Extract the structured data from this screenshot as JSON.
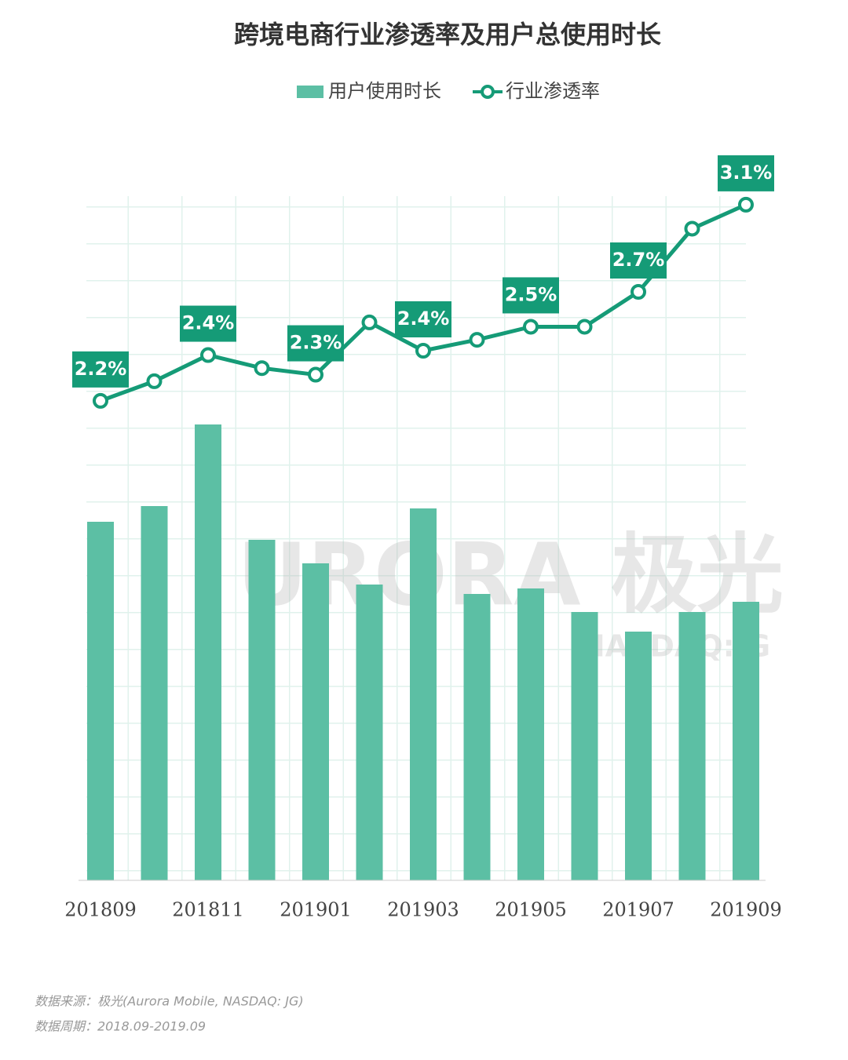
{
  "chart_data": {
    "type": "bar-line",
    "title": "跨境电商行业渗透率及用户总使用时长",
    "categories": [
      "201809",
      null,
      "201811",
      null,
      "201901",
      null,
      "201903",
      null,
      "201905",
      null,
      "201907",
      null,
      "201909"
    ],
    "series": [
      {
        "name": "用户使用时长",
        "type": "bar",
        "color": "#5cbfa4",
        "values": [
          457,
          477,
          581,
          434,
          404,
          377,
          474,
          365,
          372,
          342,
          317,
          342,
          355
        ]
      },
      {
        "name": "行业渗透率",
        "type": "line",
        "axis": "y2",
        "color": "#159b77",
        "values": [
          2.2,
          2.29,
          2.41,
          2.35,
          2.32,
          2.56,
          2.43,
          2.48,
          2.54,
          2.54,
          2.7,
          2.99,
          3.1
        ],
        "value_labels": [
          "2.2%",
          null,
          "2.4%",
          null,
          "2.3%",
          null,
          "2.4%",
          null,
          "2.5%",
          null,
          "2.7%",
          null,
          "3.1%"
        ]
      }
    ],
    "ylim": [
      0,
      1000
    ],
    "y2lim": [
      0,
      3.6
    ],
    "watermark": [
      "URORA 极光",
      "NASDAQ:JG"
    ],
    "source": "数据来源：极光(Aurora  Mobile, NASDAQ: JG)",
    "period": "数据周期：2018.09-2019.09"
  }
}
